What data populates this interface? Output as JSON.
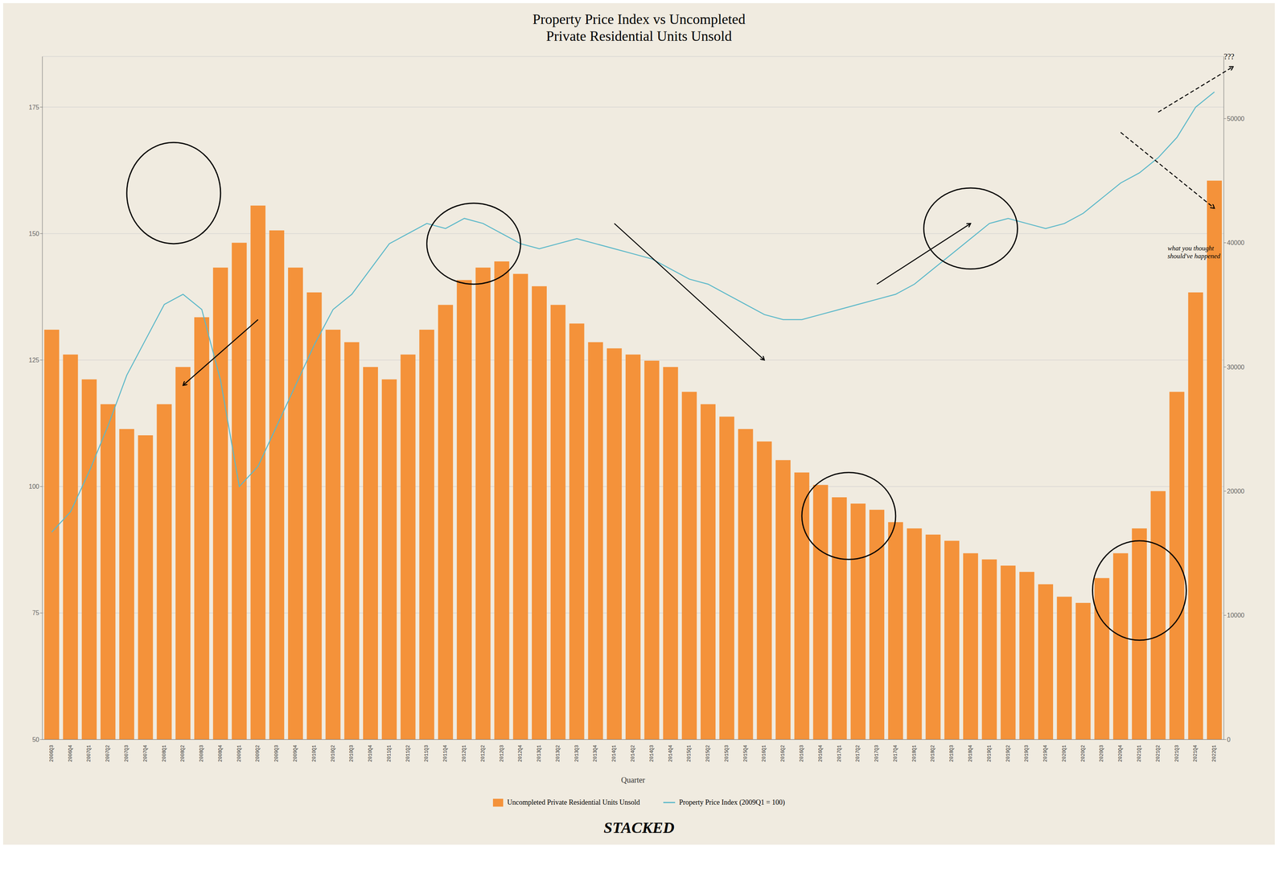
{
  "chart_data": {
    "type": "bar",
    "title": "Property Price Index vs Uncompleted\nPrivate Residential Units Unsold",
    "xlabel": "Quarter",
    "categories": [
      "2006Q3",
      "2006Q4",
      "2007Q1",
      "2007Q2",
      "2007Q3",
      "2007Q4",
      "2008Q1",
      "2008Q2",
      "2008Q3",
      "2008Q4",
      "2009Q1",
      "2009Q2",
      "2009Q3",
      "2009Q4",
      "2010Q1",
      "2010Q2",
      "2010Q3",
      "2010Q4",
      "2011Q1",
      "2011Q2",
      "2011Q3",
      "2011Q4",
      "2012Q1",
      "2012Q2",
      "2012Q3",
      "2012Q4",
      "2013Q1",
      "2013Q2",
      "2013Q3",
      "2013Q4",
      "2014Q1",
      "2014Q2",
      "2014Q3",
      "2014Q4",
      "2015Q1",
      "2015Q2",
      "2015Q3",
      "2015Q4",
      "2016Q1",
      "2016Q2",
      "2016Q3",
      "2016Q4",
      "2017Q1",
      "2017Q2",
      "2017Q3",
      "2017Q4",
      "2018Q1",
      "2018Q2",
      "2018Q3",
      "2018Q4",
      "2019Q1",
      "2019Q2",
      "2019Q3",
      "2019Q4",
      "2020Q1",
      "2020Q2",
      "2020Q3",
      "2020Q4",
      "2021Q1",
      "2021Q2",
      "2021Q3",
      "2021Q4",
      "2022Q1"
    ],
    "series": [
      {
        "name": "Uncompleted Private Residential Units Unsold",
        "type": "bar",
        "axis": "y2",
        "color": "#f4923a",
        "values": [
          33000,
          31000,
          29000,
          27000,
          25000,
          24500,
          27000,
          30000,
          34000,
          38000,
          40000,
          43000,
          41000,
          38000,
          36000,
          33000,
          32000,
          30000,
          29000,
          31000,
          33000,
          35000,
          37000,
          38000,
          38500,
          37500,
          36500,
          35000,
          33500,
          32000,
          31500,
          31000,
          30500,
          30000,
          28000,
          27000,
          26000,
          25000,
          24000,
          22500,
          21500,
          20500,
          19500,
          19000,
          18500,
          17500,
          17000,
          16500,
          16000,
          15000,
          14500,
          14000,
          13500,
          12500,
          11500,
          11000,
          13000,
          15000,
          17000,
          20000,
          28000,
          36000,
          45000
        ]
      },
      {
        "name": "Property Price Index (2009Q1 = 100)",
        "type": "line",
        "color": "#5bb8c9",
        "values": [
          91,
          95,
          103,
          112,
          122,
          129,
          136,
          138,
          135,
          121,
          100,
          104,
          112,
          120,
          128,
          135,
          138,
          143,
          148,
          150,
          152,
          151,
          153,
          152,
          150,
          148,
          147,
          148,
          149,
          148,
          147,
          146,
          145,
          143,
          141,
          140,
          138,
          136,
          134,
          133,
          133,
          134,
          135,
          136,
          137,
          138,
          140,
          143,
          146,
          149,
          152,
          153,
          152,
          151,
          152,
          154,
          157,
          160,
          162,
          165,
          169,
          175,
          178
        ]
      }
    ],
    "ylim": [
      50,
      185
    ],
    "yticks": [
      50,
      75,
      100,
      125,
      150,
      175
    ],
    "y2lim": [
      0,
      55000
    ],
    "y2ticks": [
      0,
      10000,
      20000,
      30000,
      40000,
      50000
    ],
    "grid": true,
    "legend": "bottom",
    "annotations": [
      "what you thought\nshould've happened",
      "???",
      "STACKED"
    ]
  }
}
